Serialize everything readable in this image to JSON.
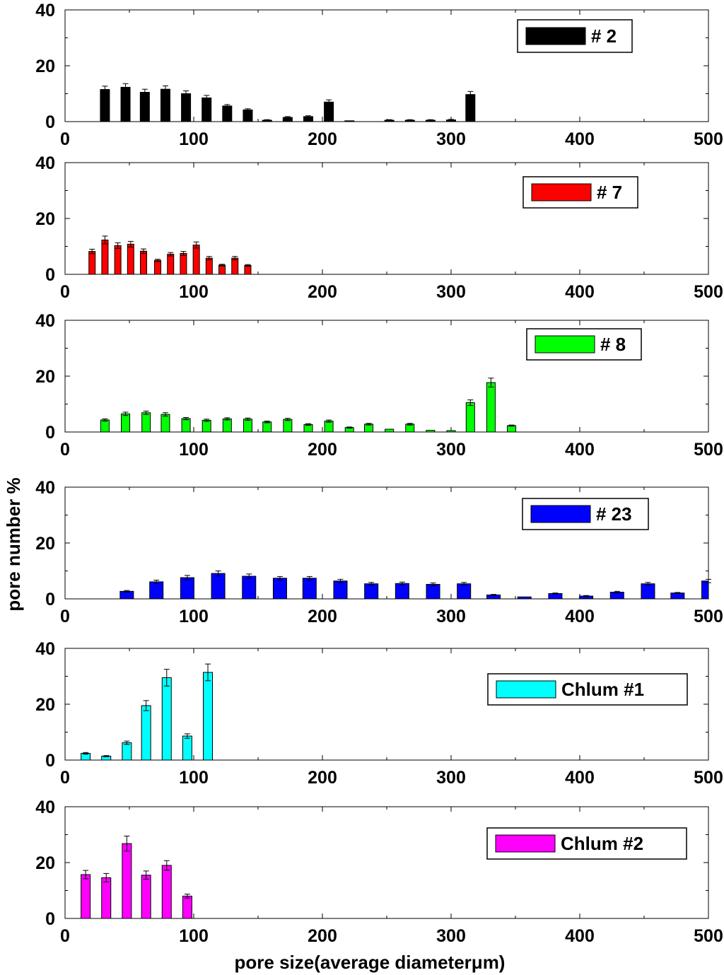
{
  "figure": {
    "ylabel": "pore number %",
    "xlabel": "pore size(average diameterμm)"
  },
  "chart_data": [
    {
      "type": "bar",
      "legend": "# 2",
      "color": "#000000",
      "xlim": [
        0,
        500
      ],
      "ylim": [
        0,
        40
      ],
      "xticks": [
        "0",
        "100",
        "200",
        "300",
        "400",
        "500"
      ],
      "yticks": [
        "0",
        "20",
        "40"
      ],
      "legend_position": "top-right",
      "bar_width": 13,
      "x": [
        31,
        47,
        62,
        78,
        94,
        110,
        126,
        142,
        157,
        173,
        189,
        205,
        221,
        252,
        268,
        284,
        300,
        315
      ],
      "values": [
        11.5,
        12.3,
        10.5,
        11.6,
        10.0,
        8.5,
        5.6,
        4.2,
        0.5,
        1.5,
        1.8,
        7.0,
        0.3,
        0.5,
        0.5,
        0.5,
        0.6,
        9.7
      ],
      "errors": [
        1.2,
        1.3,
        1.1,
        1.2,
        1.0,
        0.9,
        0.5,
        0.4,
        0.2,
        0.3,
        0.3,
        0.8,
        0.1,
        0.2,
        0.2,
        0.2,
        0.2,
        1.1
      ]
    },
    {
      "type": "bar",
      "legend": "# 7",
      "color": "#ff0000",
      "xlim": [
        0,
        500
      ],
      "ylim": [
        0,
        40
      ],
      "xticks": [
        "0",
        "100",
        "200",
        "300",
        "400",
        "500"
      ],
      "yticks": [
        "0",
        "20",
        "40"
      ],
      "legend_position": "top-right",
      "bar_width": 9,
      "x": [
        21,
        31,
        41,
        51,
        61,
        72,
        82,
        92,
        102,
        112,
        122,
        132,
        142
      ],
      "values": [
        8.2,
        12.3,
        10.3,
        10.8,
        8.3,
        5.0,
        7.2,
        7.5,
        10.5,
        5.8,
        3.3,
        5.8,
        3.2
      ],
      "errors": [
        0.8,
        1.4,
        1.0,
        1.0,
        0.8,
        0.4,
        0.6,
        0.7,
        1.1,
        0.6,
        0.3,
        0.6,
        0.3
      ]
    },
    {
      "type": "bar",
      "legend": "# 8",
      "color": "#00ff00",
      "xlim": [
        0,
        500
      ],
      "ylim": [
        0,
        40
      ],
      "xticks": [
        "0",
        "100",
        "200",
        "300",
        "400",
        "500"
      ],
      "yticks": [
        "0",
        "20",
        "40"
      ],
      "legend_position": "top-right",
      "bar_width": 12,
      "x": [
        31,
        47,
        63,
        78,
        94,
        110,
        126,
        142,
        157,
        173,
        189,
        205,
        221,
        236,
        252,
        268,
        284,
        300,
        315,
        331,
        347
      ],
      "values": [
        4.3,
        6.5,
        6.9,
        6.3,
        4.8,
        4.2,
        4.7,
        4.6,
        3.6,
        4.5,
        2.7,
        3.9,
        1.6,
        2.8,
        1.0,
        2.8,
        0.6,
        0.5,
        10.5,
        17.7,
        2.3
      ],
      "errors": [
        0.4,
        0.6,
        0.6,
        0.6,
        0.4,
        0.4,
        0.4,
        0.4,
        0.3,
        0.4,
        0.3,
        0.4,
        0.2,
        0.3,
        0.1,
        0.3,
        0.1,
        0.1,
        1.0,
        1.6,
        0.2
      ]
    },
    {
      "type": "bar",
      "legend": "# 23",
      "color": "#0000ff",
      "xlim": [
        0,
        500
      ],
      "ylim": [
        0,
        40
      ],
      "xticks": [
        "0",
        "100",
        "200",
        "300",
        "400",
        "500"
      ],
      "yticks": [
        "0",
        "20",
        "40"
      ],
      "legend_position": "top-right",
      "bar_width": 19,
      "x": [
        48,
        71,
        95,
        119,
        143,
        167,
        190,
        214,
        238,
        262,
        286,
        310,
        333,
        357,
        381,
        405,
        429,
        453,
        476,
        500
      ],
      "values": [
        2.7,
        6.1,
        7.6,
        9.1,
        8.1,
        7.4,
        7.4,
        6.4,
        5.4,
        5.5,
        5.2,
        5.4,
        1.4,
        0.7,
        1.9,
        1.0,
        2.4,
        5.4,
        2.1,
        6.4
      ],
      "errors": [
        0.3,
        0.6,
        0.8,
        0.9,
        0.8,
        0.6,
        0.6,
        0.6,
        0.5,
        0.5,
        0.5,
        0.5,
        0.2,
        0.1,
        0.2,
        0.2,
        0.3,
        0.5,
        0.2,
        0.6
      ]
    },
    {
      "type": "bar",
      "legend": "Chlum #1",
      "color": "#00ffff",
      "xlim": [
        0,
        500
      ],
      "ylim": [
        0,
        40
      ],
      "xticks": [
        "0",
        "100",
        "200",
        "300",
        "400",
        "500"
      ],
      "yticks": [
        "0",
        "20",
        "40"
      ],
      "legend_position": "top-right",
      "bar_width": 13,
      "x": [
        16,
        32,
        48,
        63,
        79,
        95,
        111
      ],
      "values": [
        2.4,
        1.4,
        6.2,
        19.5,
        29.5,
        8.6,
        31.4
      ],
      "errors": [
        0.3,
        0.2,
        0.6,
        1.8,
        3.0,
        0.8,
        3.0
      ]
    },
    {
      "type": "bar",
      "legend": "Chlum #2",
      "color": "#ff00ff",
      "xlim": [
        0,
        500
      ],
      "ylim": [
        0,
        40
      ],
      "xticks": [
        "0",
        "100",
        "200",
        "300",
        "400",
        "500"
      ],
      "yticks": [
        "0",
        "20",
        "40"
      ],
      "legend_position": "top-right",
      "bar_width": 13,
      "x": [
        16,
        32,
        48,
        63,
        79,
        95
      ],
      "values": [
        15.7,
        14.6,
        26.8,
        15.5,
        19.0,
        8.0
      ],
      "errors": [
        1.5,
        1.5,
        2.7,
        1.5,
        1.7,
        0.7
      ]
    }
  ]
}
